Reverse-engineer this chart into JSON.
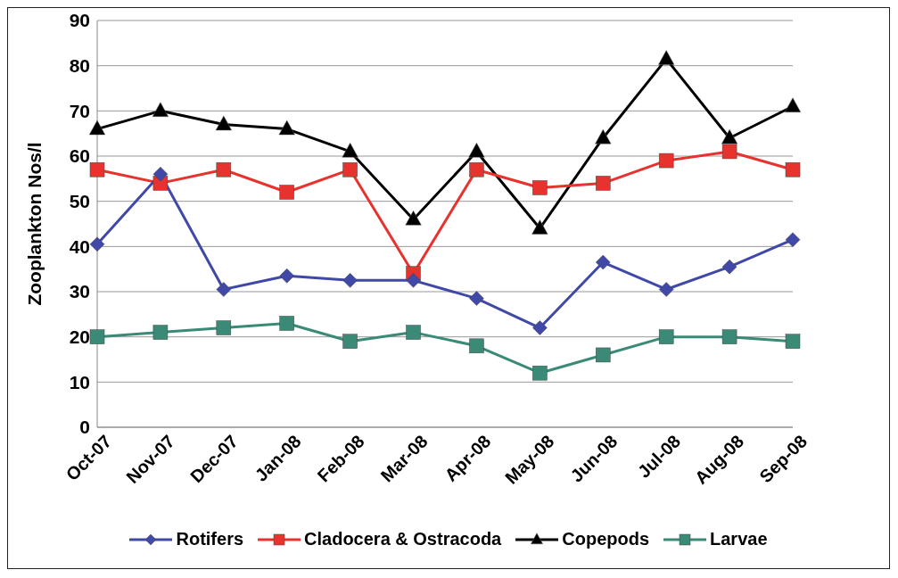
{
  "chart_data": {
    "type": "line",
    "ylabel": "Zooplankton Nos/l",
    "categories": [
      "Oct-07",
      "Nov-07",
      "Dec-07",
      "Jan-08",
      "Feb-08",
      "Mar-08",
      "Apr-08",
      "May-08",
      "Jun-08",
      "Jul-08",
      "Aug-08",
      "Sep-08"
    ],
    "series": [
      {
        "name": "Rotifers",
        "color": "#4048a8",
        "marker": "diamond",
        "values": [
          40.5,
          56,
          30.5,
          33.5,
          32.5,
          32.5,
          28.5,
          22,
          36.5,
          30.5,
          35.5,
          41.5
        ]
      },
      {
        "name": "Cladocera & Ostracoda",
        "color": "#e8322e",
        "marker": "square",
        "values": [
          57,
          54,
          57,
          52,
          57,
          34,
          57,
          53,
          54,
          59,
          61,
          57
        ]
      },
      {
        "name": "Copepods",
        "color": "#000000",
        "marker": "triangle",
        "values": [
          66,
          70,
          67,
          66,
          61,
          46,
          61,
          44,
          64,
          81.5,
          64,
          71
        ]
      },
      {
        "name": "Larvae",
        "color": "#3b8a78",
        "marker": "square",
        "values": [
          20,
          21,
          22,
          23,
          19,
          21,
          18,
          12,
          16,
          20,
          20,
          19
        ]
      }
    ],
    "ylim": [
      0,
      90
    ],
    "yticks": [
      0,
      10,
      20,
      30,
      40,
      50,
      60,
      70,
      80,
      90
    ],
    "grid": "y",
    "legend": "bottom",
    "line_style": "solid"
  }
}
